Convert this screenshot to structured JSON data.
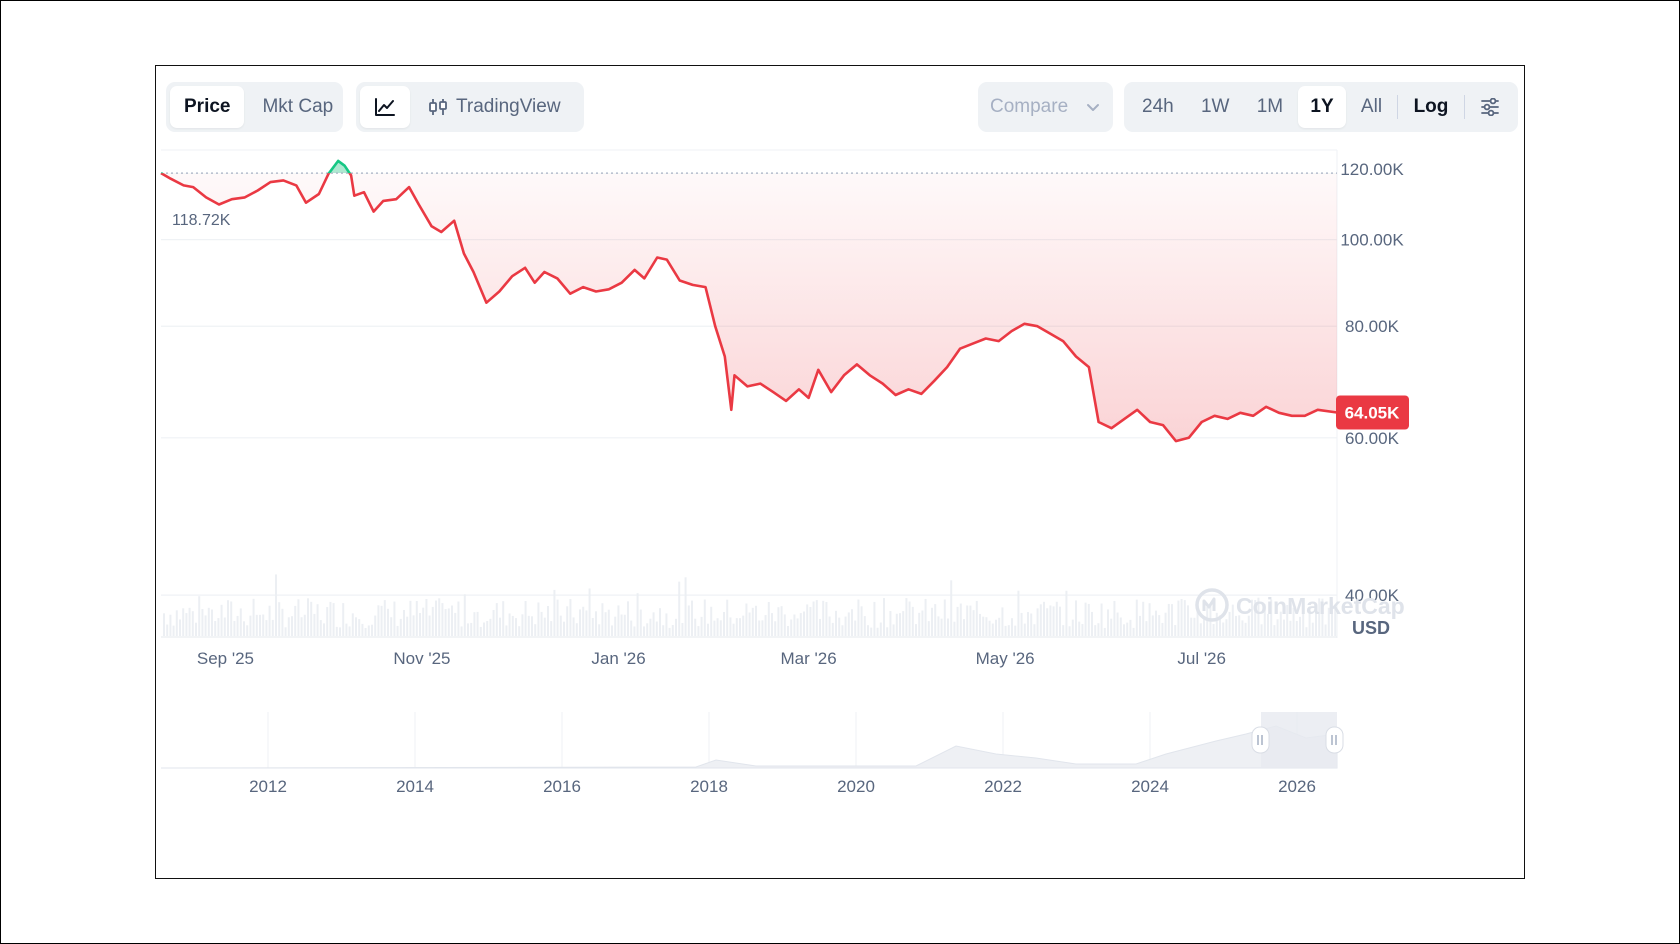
{
  "tabs": {
    "type_options": [
      "Price",
      "Mkt Cap"
    ],
    "active_type": "Price",
    "view_options": {
      "tradingview_label": "TradingView"
    }
  },
  "compare": {
    "label": "Compare"
  },
  "range": {
    "options": [
      "24h",
      "1W",
      "1M",
      "1Y",
      "All"
    ],
    "active": "1Y",
    "log_label": "Log"
  },
  "icons": [
    "line-chart-icon",
    "candlestick-icon",
    "chevron-down-icon",
    "settings-sliders-icon",
    "coinmarketcap-logo-icon"
  ],
  "colors": {
    "down": "#ea3943",
    "up": "#16c784",
    "accent_text": "#58667e"
  },
  "watermark": "CoinMarketCap",
  "currency": "USD",
  "high_label": "118.72K",
  "current_price_label": "64.05K",
  "chart_data": {
    "type": "line",
    "y_scale": "log",
    "ylim": [
      36000,
      126000
    ],
    "y_ticks": [
      {
        "label": "120.00K",
        "value": 120000
      },
      {
        "label": "100.00K",
        "value": 100000
      },
      {
        "label": "80.00K",
        "value": 80000
      },
      {
        "label": "60.00K",
        "value": 60000
      },
      {
        "label": "40.00K",
        "value": 40000
      }
    ],
    "x_ticks": [
      {
        "label": "Sep '25",
        "x": "2025-09-01"
      },
      {
        "label": "Nov '25",
        "x": "2025-11-01"
      },
      {
        "label": "Jan '26",
        "x": "2026-01-01"
      },
      {
        "label": "Mar '26",
        "x": "2026-03-01"
      },
      {
        "label": "May '26",
        "x": "2026-05-01"
      },
      {
        "label": "Jul '26",
        "x": "2026-07-01"
      }
    ],
    "xlim": [
      "2025-08-12",
      "2026-08-12"
    ],
    "reference_line": {
      "value": 118720,
      "label": "118.72K"
    },
    "current_price": 64050,
    "series": [
      {
        "points": [
          [
            "2025-08-12",
            118720
          ],
          [
            "2025-08-15",
            117000
          ],
          [
            "2025-08-19",
            115000
          ],
          [
            "2025-08-22",
            114500
          ],
          [
            "2025-08-26",
            111500
          ],
          [
            "2025-08-30",
            109500
          ],
          [
            "2025-09-03",
            111000
          ],
          [
            "2025-09-07",
            111500
          ],
          [
            "2025-09-11",
            113500
          ],
          [
            "2025-09-15",
            116000
          ],
          [
            "2025-09-19",
            116500
          ],
          [
            "2025-09-23",
            115000
          ],
          [
            "2025-09-26",
            110000
          ],
          [
            "2025-09-30",
            112500
          ],
          [
            "2025-10-03",
            118500
          ],
          [
            "2025-10-06",
            122500
          ],
          [
            "2025-10-08",
            121000
          ],
          [
            "2025-10-10",
            118000
          ],
          [
            "2025-10-11",
            112000
          ],
          [
            "2025-10-14",
            113000
          ],
          [
            "2025-10-17",
            107500
          ],
          [
            "2025-10-20",
            110500
          ],
          [
            "2025-10-24",
            111000
          ],
          [
            "2025-10-28",
            114500
          ],
          [
            "2025-10-31",
            109500
          ],
          [
            "2025-11-04",
            103500
          ],
          [
            "2025-11-07",
            102000
          ],
          [
            "2025-11-11",
            105000
          ],
          [
            "2025-11-14",
            96500
          ],
          [
            "2025-11-17",
            92000
          ],
          [
            "2025-11-21",
            85000
          ],
          [
            "2025-11-25",
            87500
          ],
          [
            "2025-11-29",
            91000
          ],
          [
            "2025-12-03",
            93000
          ],
          [
            "2025-12-06",
            89500
          ],
          [
            "2025-12-09",
            92000
          ],
          [
            "2025-12-13",
            90500
          ],
          [
            "2025-12-17",
            87000
          ],
          [
            "2025-12-21",
            88500
          ],
          [
            "2025-12-25",
            87500
          ],
          [
            "2025-12-29",
            88000
          ],
          [
            "2026-01-02",
            89500
          ],
          [
            "2026-01-06",
            92500
          ],
          [
            "2026-01-09",
            90500
          ],
          [
            "2026-01-13",
            95500
          ],
          [
            "2026-01-16",
            95000
          ],
          [
            "2026-01-20",
            90000
          ],
          [
            "2026-01-24",
            89000
          ],
          [
            "2026-01-28",
            88500
          ],
          [
            "2026-01-31",
            80000
          ],
          [
            "2026-02-03",
            74000
          ],
          [
            "2026-02-05",
            64500
          ],
          [
            "2026-02-06",
            70500
          ],
          [
            "2026-02-10",
            68500
          ],
          [
            "2026-02-14",
            69000
          ],
          [
            "2026-02-18",
            67500
          ],
          [
            "2026-02-22",
            66000
          ],
          [
            "2026-02-26",
            68000
          ],
          [
            "2026-03-01",
            66500
          ],
          [
            "2026-03-04",
            71500
          ],
          [
            "2026-03-08",
            67500
          ],
          [
            "2026-03-12",
            70500
          ],
          [
            "2026-03-16",
            72500
          ],
          [
            "2026-03-20",
            70500
          ],
          [
            "2026-03-24",
            69000
          ],
          [
            "2026-03-28",
            67000
          ],
          [
            "2026-04-01",
            68000
          ],
          [
            "2026-04-05",
            67200
          ],
          [
            "2026-04-09",
            69500
          ],
          [
            "2026-04-13",
            72000
          ],
          [
            "2026-04-17",
            75500
          ],
          [
            "2026-04-21",
            76500
          ],
          [
            "2026-04-25",
            77500
          ],
          [
            "2026-04-29",
            77000
          ],
          [
            "2026-05-03",
            79000
          ],
          [
            "2026-05-07",
            80500
          ],
          [
            "2026-05-11",
            80000
          ],
          [
            "2026-05-15",
            78500
          ],
          [
            "2026-05-19",
            77000
          ],
          [
            "2026-05-23",
            74000
          ],
          [
            "2026-05-27",
            72000
          ],
          [
            "2026-05-30",
            62500
          ],
          [
            "2026-06-03",
            61500
          ],
          [
            "2026-06-07",
            63000
          ],
          [
            "2026-06-11",
            64500
          ],
          [
            "2026-06-15",
            62500
          ],
          [
            "2026-06-19",
            62000
          ],
          [
            "2026-06-23",
            59500
          ],
          [
            "2026-06-27",
            60000
          ],
          [
            "2026-07-01",
            62500
          ],
          [
            "2026-07-05",
            63500
          ],
          [
            "2026-07-09",
            63000
          ],
          [
            "2026-07-13",
            64000
          ],
          [
            "2026-07-17",
            63500
          ],
          [
            "2026-07-21",
            65000
          ],
          [
            "2026-07-25",
            64000
          ],
          [
            "2026-07-29",
            63500
          ],
          [
            "2026-08-02",
            63500
          ],
          [
            "2026-08-06",
            64500
          ],
          [
            "2026-08-12",
            64050
          ]
        ]
      }
    ],
    "navigator": {
      "x_ticks": [
        "2012",
        "2014",
        "2016",
        "2018",
        "2020",
        "2022",
        "2024",
        "2026"
      ],
      "selected_range": [
        "2025-08-12",
        "2026-08-12"
      ]
    }
  }
}
